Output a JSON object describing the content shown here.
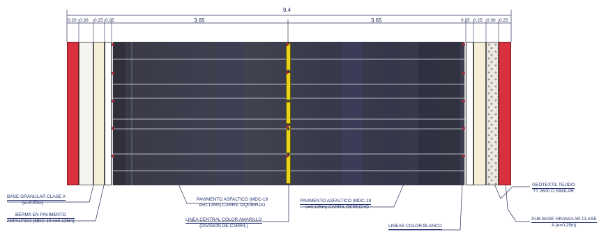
{
  "dimensions": {
    "total": "9.4",
    "lane_left": "3.65",
    "lane_right": "3.65",
    "left_small": [
      "0.20",
      "0.30",
      "0.25",
      "0.25"
    ],
    "right_small": [
      "0.25",
      "0.25",
      "0.30",
      "0.25"
    ]
  },
  "labels": {
    "base_granular_1": "BASE GRANULAR CLASE A",
    "base_granular_2": "(e=0.20m)",
    "berma_1": "BERMA EN PAVIMENTO",
    "berma_2": "ASFALTICO (MDC-19 e=0.125m)",
    "pav_left_1": "PAVIMENTO ASFALTICO (MDC-19",
    "pav_left_2": "e=0.125m) CARRIL IZQUIERDO",
    "linea_central_1": "LINEA CENTRAL COLOR AMARILLO",
    "linea_central_2": "(DIVISION DE CARRIL)",
    "pav_right_1": "PAVIMENTO ASFALTICO (MDC-19",
    "pav_right_2": "e=0.125m) CARRIL DERECHO",
    "lineas_blanco": "LINEAS COLOR BLANCO",
    "geotextil_1": "GEOTEXTIL TEJIDO",
    "geotextil_2": "TT 2600 O SIMILAR",
    "subbase_1": "SUB BASE GRANULAR CLASE",
    "subbase_2": "A (e=0.25m)"
  },
  "colors": {
    "asphalt": "#3c3e4d",
    "center_line": "#e8d41a",
    "subbase": "#d8303c",
    "base": "#f6f4f0",
    "berma": "#f4efd6",
    "dimension_ink": "#2a2f5a",
    "label_ink": "#1f2d6e"
  }
}
